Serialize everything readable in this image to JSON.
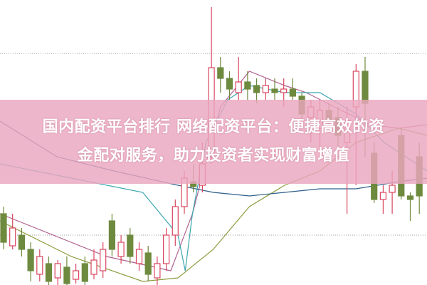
{
  "title": {
    "line1": "国内配资平台排行 网络配资平台：便捷高效的资",
    "line2": "金配对服务，助力投资者实现财富增值"
  },
  "colors": {
    "up": "#d9455f",
    "down": "#6e8a3e",
    "banner": "#eaa6be",
    "grid": "#9a9a9a"
  },
  "chart_data": {
    "type": "candlestick",
    "title": "",
    "xlabel": "",
    "ylabel": "",
    "ylim": [
      0,
      100
    ],
    "grid": "dotted horizontal",
    "candles": [
      [
        25,
        27.5,
        12.5,
        15
      ],
      [
        13.75,
        25,
        12.5,
        20
      ],
      [
        17.5,
        20,
        10,
        12.5
      ],
      [
        12.5,
        15,
        1.25,
        5
      ],
      [
        3.75,
        12.5,
        1.25,
        10
      ],
      [
        7.5,
        10,
        0,
        1.25
      ],
      [
        2.5,
        8.75,
        0,
        7.5
      ],
      [
        6.25,
        10,
        0,
        0.5
      ],
      [
        2,
        7.5,
        0.5,
        5
      ],
      [
        7.5,
        10,
        0,
        1.25
      ],
      [
        3.75,
        12.5,
        2,
        8.75
      ],
      [
        5,
        15,
        2.5,
        12.5
      ],
      [
        22.5,
        25,
        10,
        12.5
      ],
      [
        10,
        17.5,
        7.5,
        15
      ],
      [
        17.5,
        20,
        7.5,
        10
      ],
      [
        7.5,
        15,
        5,
        12.5
      ],
      [
        11.25,
        13.75,
        1.25,
        3.75
      ],
      [
        2.5,
        10,
        0,
        7.5
      ],
      [
        7.5,
        20,
        5,
        17.5
      ],
      [
        17.5,
        30,
        13.75,
        27.5
      ],
      [
        27.5,
        40,
        25,
        37.5
      ],
      [
        36.25,
        42.5,
        32.5,
        34.5
      ],
      [
        35,
        50,
        32.5,
        42.5
      ],
      [
        45,
        97.5,
        42.5,
        76.25
      ],
      [
        76.25,
        80,
        67.5,
        72.5
      ],
      [
        72.5,
        75,
        65,
        68.75
      ],
      [
        67.5,
        80,
        65,
        71.25
      ],
      [
        71.25,
        75,
        65,
        68.75
      ],
      [
        70,
        72.5,
        63.75,
        67.5
      ],
      [
        67.5,
        72.5,
        65,
        70
      ],
      [
        68.75,
        72.5,
        65,
        67.5
      ],
      [
        67.5,
        72.5,
        62.5,
        68.75
      ],
      [
        68.75,
        72.5,
        65,
        66.25
      ],
      [
        66.25,
        67.5,
        55,
        60
      ],
      [
        58.75,
        65,
        50,
        62.5
      ],
      [
        55,
        65,
        45,
        61.25
      ],
      [
        61.25,
        63.75,
        55,
        57.5
      ],
      [
        58.75,
        62.5,
        47.5,
        52.5
      ],
      [
        50,
        62.5,
        25,
        57.5
      ],
      [
        62.5,
        77.5,
        35,
        75
      ],
      [
        75,
        80,
        45,
        63.75
      ],
      [
        46.25,
        50,
        28.75,
        30
      ],
      [
        30,
        35,
        25,
        32.5
      ],
      [
        32.5,
        40,
        25,
        35
      ],
      [
        52.5,
        55,
        30,
        31.25
      ],
      [
        31.25,
        32.5,
        22.5,
        30
      ],
      [
        45,
        50,
        25,
        31.25
      ]
    ],
    "moving_averages": [
      {
        "color": "#b0608f",
        "points": [
          [
            -0.4,
            25
          ],
          [
            11.4,
            10
          ],
          [
            18.5,
            5
          ],
          [
            20.9,
            25
          ],
          [
            24,
            62.5
          ],
          [
            27.2,
            75
          ],
          [
            31.1,
            70
          ],
          [
            33.5,
            67.5
          ],
          [
            36.6,
            62.5
          ],
          [
            40.6,
            56.25
          ],
          [
            43.7,
            55
          ],
          [
            46.9,
            56.25
          ]
        ]
      },
      {
        "color": "#3aa6b0",
        "points": [
          [
            -0.4,
            42.5
          ],
          [
            7.5,
            37.5
          ],
          [
            15.4,
            32.5
          ],
          [
            19.3,
            17.5
          ],
          [
            20.1,
            5
          ],
          [
            20.9,
            25
          ],
          [
            22.4,
            50
          ],
          [
            24.8,
            65
          ],
          [
            27.2,
            70
          ],
          [
            31.1,
            67.5
          ],
          [
            35,
            67.5
          ],
          [
            39,
            60
          ],
          [
            42.1,
            50
          ],
          [
            46.9,
            40
          ]
        ]
      },
      {
        "color": "#8d9c3c",
        "points": [
          [
            -0.4,
            22.5
          ],
          [
            7.5,
            10
          ],
          [
            15.4,
            1.25
          ],
          [
            19.3,
            2.5
          ],
          [
            23.2,
            12.5
          ],
          [
            27.2,
            27.5
          ],
          [
            31.1,
            35
          ],
          [
            35,
            40
          ],
          [
            39,
            50
          ],
          [
            43.7,
            55
          ],
          [
            46.9,
            52.5
          ]
        ]
      },
      {
        "color": "#2f5f8a",
        "points": [
          [
            -0.4,
            57.5
          ],
          [
            5.9,
            45
          ],
          [
            12.2,
            40
          ],
          [
            19.3,
            35
          ],
          [
            23.2,
            32.5
          ],
          [
            27.2,
            31.25
          ],
          [
            31.1,
            32.5
          ],
          [
            35,
            33.75
          ],
          [
            39,
            33.75
          ],
          [
            43.7,
            36.25
          ],
          [
            46.9,
            37.5
          ]
        ]
      }
    ],
    "gridlines": [
      81.25,
      17.5
    ]
  }
}
